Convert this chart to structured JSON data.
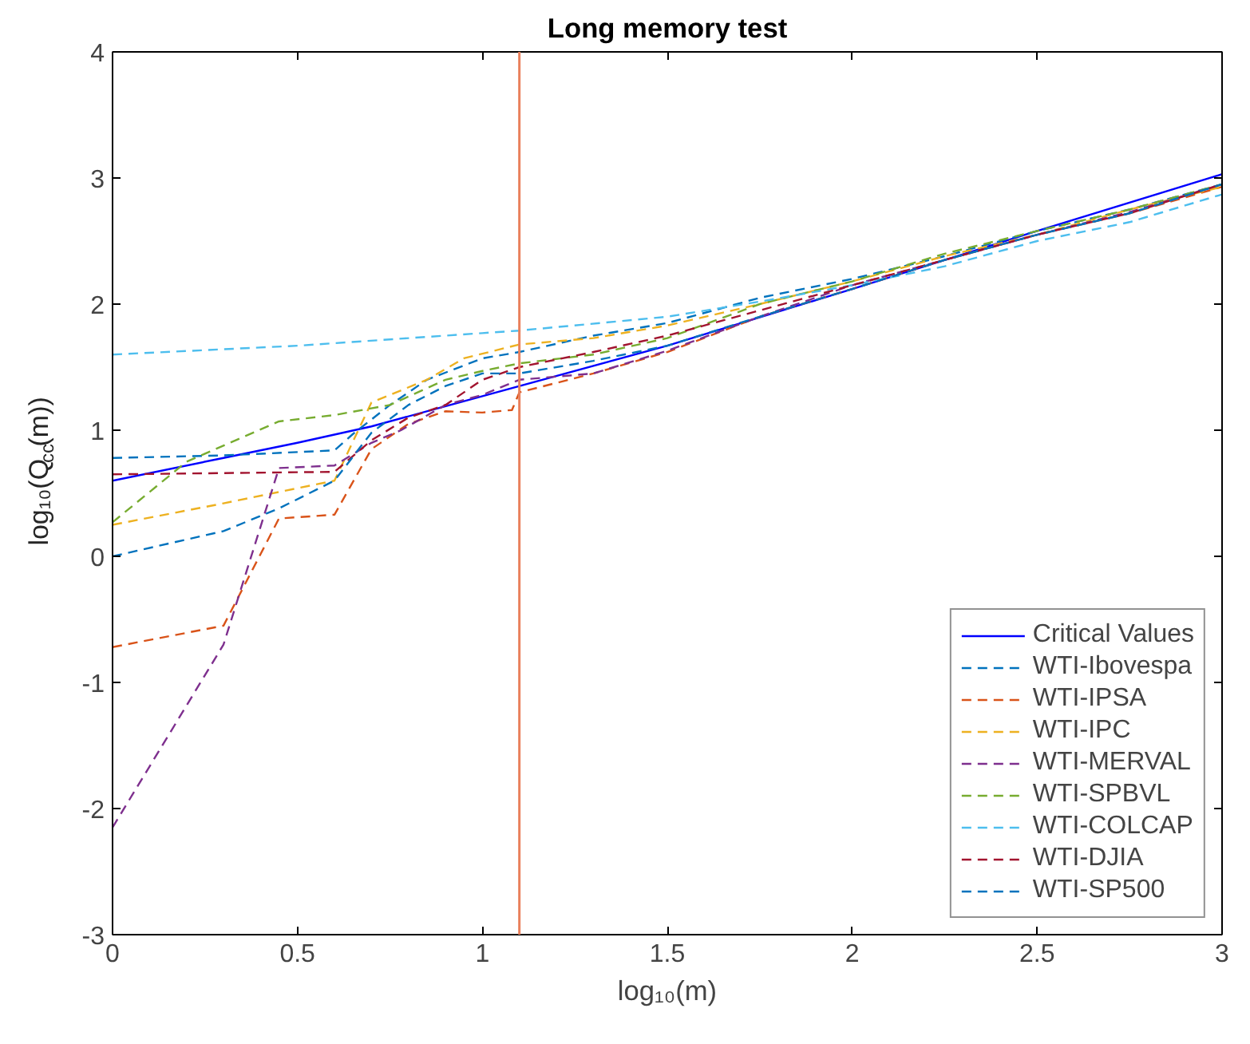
{
  "chart_data": {
    "type": "line",
    "title": "Long memory test",
    "xlabel": "log₁₀(m)",
    "ylabel": "log₁₀(Q$_{cc}$(m))",
    "xlim": [
      0,
      3
    ],
    "ylim": [
      -3,
      4
    ],
    "xticks": [
      0,
      {
        "value": 0.5,
        "label": "0.5"
      },
      1,
      {
        "value": 1.5,
        "label": "1.5"
      },
      2,
      {
        "value": 2.5,
        "label": "2.5"
      },
      3
    ],
    "yticks": [
      -3,
      -2,
      -1,
      0,
      1,
      2,
      3,
      4
    ],
    "grid": false,
    "legend": "bottom right",
    "marker": "none",
    "ref_lines": [
      {
        "axis": "x",
        "value": 1.1,
        "label": null,
        "color": "#e9805c",
        "line_style": "solid"
      }
    ],
    "series": [
      {
        "name": "Critical Values",
        "color": "#0000ff",
        "line_style": "solid",
        "x": [
          0,
          0.3,
          0.5,
          0.7,
          1,
          1.5,
          2,
          2.5,
          3
        ],
        "values": [
          0.6,
          0.78,
          0.9,
          1.03,
          1.27,
          1.67,
          2.12,
          2.58,
          3.03
        ]
      },
      {
        "name": "WTI-Ibovespa",
        "color": "#0072bd",
        "line_style": "dashed",
        "x": [
          0,
          0.3,
          0.6,
          0.65,
          0.75,
          0.85,
          1,
          1.1,
          1.3,
          1.5,
          1.75,
          2,
          2.25,
          2.5,
          2.75,
          3
        ],
        "values": [
          0.78,
          0.8,
          0.84,
          0.97,
          1.2,
          1.4,
          1.57,
          1.62,
          1.75,
          1.85,
          2.05,
          2.2,
          2.38,
          2.58,
          2.75,
          2.95
        ]
      },
      {
        "name": "WTI-IPSA",
        "color": "#d95319",
        "line_style": "dashed",
        "x": [
          0,
          0.3,
          0.45,
          0.6,
          0.7,
          0.8,
          0.9,
          1,
          1.08,
          1.1,
          1.3,
          1.5,
          1.75,
          2,
          2.25,
          2.5,
          2.75,
          3
        ],
        "values": [
          -0.72,
          -0.55,
          0.3,
          0.33,
          0.85,
          1.05,
          1.15,
          1.14,
          1.16,
          1.3,
          1.45,
          1.62,
          1.9,
          2.12,
          2.35,
          2.55,
          2.72,
          2.93
        ]
      },
      {
        "name": "WTI-IPC",
        "color": "#edb120",
        "line_style": "dashed",
        "x": [
          0,
          0.3,
          0.6,
          0.7,
          0.85,
          0.95,
          1.1,
          1.3,
          1.5,
          1.75,
          2,
          2.25,
          2.5,
          2.75,
          3
        ],
        "values": [
          0.25,
          0.42,
          0.6,
          1.22,
          1.4,
          1.57,
          1.68,
          1.73,
          1.83,
          2.0,
          2.18,
          2.38,
          2.55,
          2.75,
          2.93
        ]
      },
      {
        "name": "WTI-MERVAL",
        "color": "#7e2f8e",
        "line_style": "dashed",
        "x": [
          0,
          0.3,
          0.45,
          0.6,
          0.7,
          0.78,
          0.9,
          1,
          1.1,
          1.3,
          1.5,
          1.75,
          2,
          2.25,
          2.5,
          2.75,
          3
        ],
        "values": [
          -2.15,
          -0.7,
          0.7,
          0.72,
          0.9,
          1.0,
          1.2,
          1.28,
          1.4,
          1.45,
          1.63,
          1.9,
          2.15,
          2.35,
          2.55,
          2.73,
          2.95
        ]
      },
      {
        "name": "WTI-SPBVL",
        "color": "#77ac30",
        "line_style": "dashed",
        "x": [
          0,
          0.2,
          0.45,
          0.6,
          0.75,
          0.9,
          1,
          1.1,
          1.3,
          1.5,
          1.75,
          2,
          2.25,
          2.5,
          2.75,
          3
        ],
        "values": [
          0.27,
          0.75,
          1.07,
          1.12,
          1.2,
          1.4,
          1.47,
          1.53,
          1.6,
          1.73,
          2.0,
          2.18,
          2.4,
          2.58,
          2.75,
          2.95
        ]
      },
      {
        "name": "WTI-COLCAP",
        "color": "#4dbeee",
        "line_style": "dashed",
        "x": [
          0,
          0.5,
          1,
          1.1,
          1.5,
          1.75,
          2,
          2.25,
          2.5,
          2.75,
          3
        ],
        "values": [
          1.6,
          1.67,
          1.77,
          1.79,
          1.9,
          2.02,
          2.15,
          2.3,
          2.5,
          2.65,
          2.87
        ]
      },
      {
        "name": "WTI-DJIA",
        "color": "#a2142f",
        "line_style": "dashed",
        "x": [
          0,
          0.3,
          0.6,
          0.7,
          0.8,
          0.9,
          1,
          1.1,
          1.3,
          1.5,
          1.75,
          2,
          2.25,
          2.5,
          2.75,
          3
        ],
        "values": [
          0.65,
          0.66,
          0.67,
          0.92,
          1.1,
          1.2,
          1.4,
          1.5,
          1.62,
          1.75,
          1.95,
          2.15,
          2.35,
          2.55,
          2.72,
          2.95
        ]
      },
      {
        "name": "WTI-SP500",
        "color": "#0072bd",
        "line_style": "dashed",
        "x": [
          0,
          0.3,
          0.45,
          0.6,
          0.7,
          0.8,
          0.9,
          1,
          1.1,
          1.3,
          1.5,
          1.75,
          2,
          2.25,
          2.5,
          2.75,
          3
        ],
        "values": [
          0,
          0.2,
          0.38,
          0.6,
          0.98,
          1.2,
          1.35,
          1.45,
          1.45,
          1.55,
          1.67,
          1.9,
          2.12,
          2.35,
          2.55,
          2.72,
          2.95
        ]
      }
    ]
  }
}
